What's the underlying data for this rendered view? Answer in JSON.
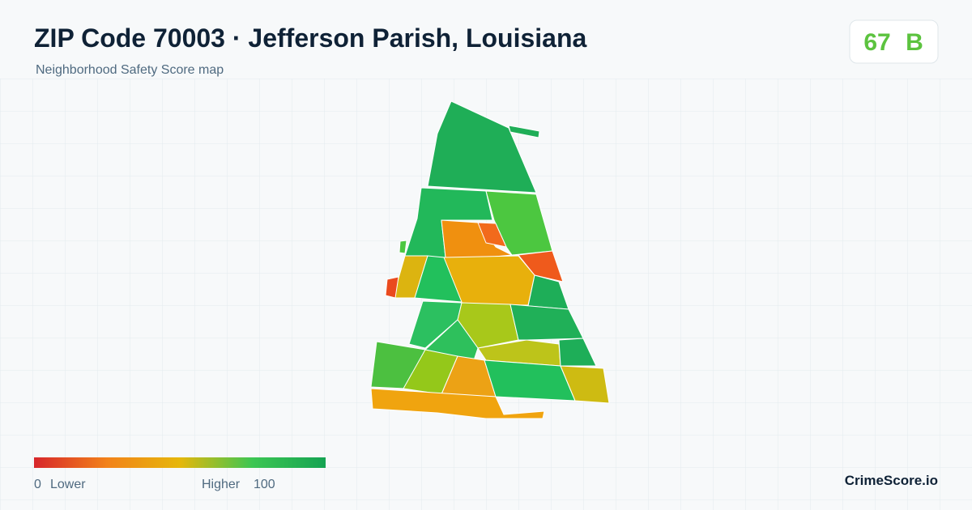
{
  "header": {
    "title": "ZIP Code 70003 · Jefferson Parish, Louisiana",
    "subtitle": "Neighborhood Safety Score map"
  },
  "score": {
    "value": 67,
    "grade": "B"
  },
  "legend": {
    "min": 0,
    "min_label": "Lower",
    "max_label": "Higher",
    "max": 100
  },
  "footer": {
    "brand": "CrimeScore.io"
  }
}
